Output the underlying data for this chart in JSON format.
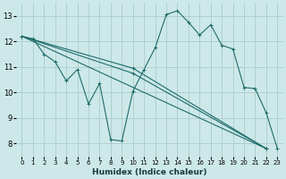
{
  "xlabel": "Humidex (Indice chaleur)",
  "background_color": "#cde8e8",
  "grid_color": "#aacccc",
  "line_color": "#1e6b6b",
  "xlim": [
    -0.5,
    23.5
  ],
  "ylim": [
    7.5,
    13.5
  ],
  "yticks": [
    8,
    9,
    10,
    11,
    12,
    13
  ],
  "xticks": [
    0,
    1,
    2,
    3,
    4,
    5,
    6,
    7,
    8,
    9,
    10,
    11,
    12,
    13,
    14,
    15,
    16,
    17,
    18,
    19,
    20,
    21,
    22,
    23
  ],
  "figsize": [
    3.2,
    2.0
  ],
  "dpi": 100,
  "series": [
    {
      "x": [
        0,
        1,
        2,
        3,
        4,
        5,
        6,
        7,
        8,
        9,
        10,
        11,
        12,
        13,
        14,
        15,
        16,
        17,
        18,
        19,
        20,
        21,
        22,
        23
      ],
      "y": [
        12.2,
        12.1,
        11.5,
        11.2,
        10.45,
        10.9,
        9.55,
        10.35,
        8.15,
        8.1,
        10.05,
        10.9,
        11.75,
        13.05,
        13.2,
        12.75,
        12.25,
        12.65,
        11.85,
        11.7,
        10.2,
        10.15,
        9.2,
        7.8
      ]
    },
    {
      "x": [
        0,
        22
      ],
      "y": [
        12.2,
        7.8
      ]
    },
    {
      "x": [
        0,
        10,
        22
      ],
      "y": [
        12.2,
        10.95,
        7.8
      ]
    },
    {
      "x": [
        0,
        10,
        22
      ],
      "y": [
        12.2,
        10.75,
        7.8
      ]
    }
  ]
}
